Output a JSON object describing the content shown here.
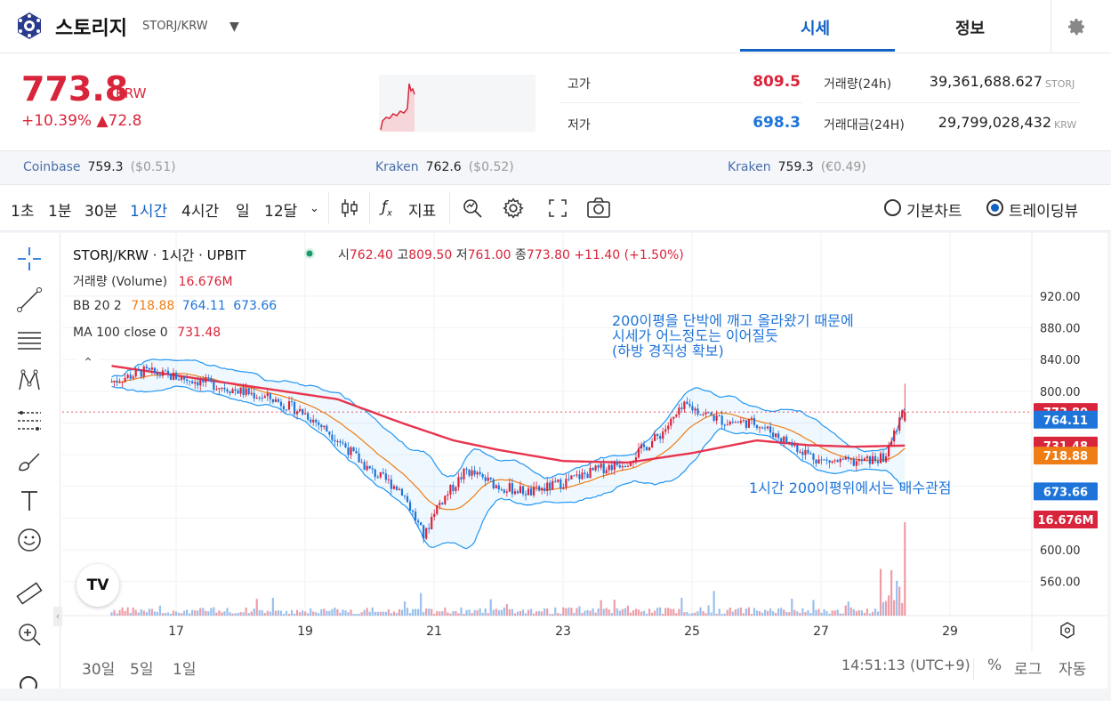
{
  "header": {
    "coin_name": "스토리지",
    "pair": "STORJ/KRW",
    "tab_quote": "시세",
    "tab_info": "정보",
    "accent": "#1261c4"
  },
  "quote": {
    "price": "773.8",
    "unit": "KRW",
    "change": "+10.39% ▲72.8",
    "high_label": "고가",
    "high": "809.5",
    "low_label": "저가",
    "low": "698.3",
    "vol_label": "거래량(24h)",
    "vol": "39,361,688.627",
    "vol_unit": "STORJ",
    "amt_label": "거래대금(24H)",
    "amt": "29,799,028,432",
    "amt_unit": "KRW",
    "up_color": "#d9253b",
    "down_color": "#1e74d9"
  },
  "exchanges": [
    {
      "name": "Coinbase",
      "price": "759.3",
      "sub": "($0.51)"
    },
    {
      "name": "Kraken",
      "price": "762.6",
      "sub": "($0.52)"
    },
    {
      "name": "Kraken",
      "price": "759.3",
      "sub": "(€0.49)"
    }
  ],
  "toolbar": {
    "intervals": [
      "1초",
      "1분",
      "30분",
      "1시간",
      "4시간",
      "일",
      "12달"
    ],
    "active_interval": "1시간",
    "indicator": "지표",
    "basic_chart": "기본차트",
    "trading_view": "트레이딩뷰"
  },
  "legend": {
    "title": "STORJ/KRW · 1시간 · UPBIT",
    "o_label": "시",
    "o": "762.40",
    "h_label": "고",
    "h": "809.50",
    "l_label": "저",
    "l": "761.00",
    "c_label": "종",
    "c": "773.80",
    "chg": "+11.40 (+1.50%)",
    "vol_label": "거래량 (Volume)",
    "vol": "16.676M",
    "bb_label": "BB 20 2",
    "bb_mid": "718.88",
    "bb_up": "764.11",
    "bb_low": "673.66",
    "ma_label": "MA 100 close 0",
    "ma": "731.48"
  },
  "annotations": {
    "note1_l1": "200이평을 단박에 깨고 올라왔기 때문에",
    "note1_l2": "시세가 어느정도는 이어질듯",
    "note1_l3": "(하방 경직성 확보)",
    "note2": "1시간 200이평위에서는 매수관점"
  },
  "chart_data": {
    "type": "candlestick",
    "ylim": [
      540,
      940
    ],
    "y_ticks": [
      920,
      880,
      840,
      800,
      600,
      560
    ],
    "x_ticks": [
      "17",
      "19",
      "21",
      "23",
      "25",
      "27",
      "29"
    ],
    "price_tags": [
      {
        "value": "773.80",
        "color": "#d9253b"
      },
      {
        "value": "764.11",
        "color": "#1e74d9"
      },
      {
        "value": "731.48",
        "color": "#d9253b"
      },
      {
        "value": "718.88",
        "color": "#ef7d16"
      },
      {
        "value": "673.66",
        "color": "#1e74d9"
      },
      {
        "value": "16.676M",
        "color": "#d9253b"
      }
    ],
    "anchors_x": [
      16,
      16.5,
      17,
      17.5,
      18,
      18.5,
      19,
      19.5,
      20,
      20.5,
      20.85,
      21,
      21.5,
      22,
      22.5,
      23,
      23.5,
      24,
      24.5,
      24.9,
      25.5,
      26,
      26.5,
      27,
      27.5,
      28,
      28.2,
      28.3
    ],
    "anchors_close": [
      812,
      825,
      818,
      810,
      800,
      790,
      772,
      740,
      700,
      675,
      615,
      650,
      700,
      680,
      672,
      685,
      700,
      712,
      745,
      782,
      762,
      760,
      735,
      712,
      710,
      716,
      762,
      773.8
    ],
    "ma100_x": [
      16,
      17,
      18,
      19.5,
      20.5,
      21.3,
      22,
      23,
      24,
      25,
      26,
      26.8,
      27.5,
      28.3
    ],
    "ma100": [
      832,
      820,
      808,
      790,
      760,
      738,
      726,
      712,
      710,
      722,
      738,
      732,
      730,
      731.48
    ],
    "last": {
      "open": 762.4,
      "high": 809.5,
      "low": 761.0,
      "close": 773.8,
      "volume_m": 16.676
    }
  },
  "bottom": {
    "ranges": [
      "30일",
      "5일",
      "1일"
    ],
    "time": "14:51:13 (UTC+9)",
    "pct": "%",
    "log": "로그",
    "auto": "자동"
  }
}
